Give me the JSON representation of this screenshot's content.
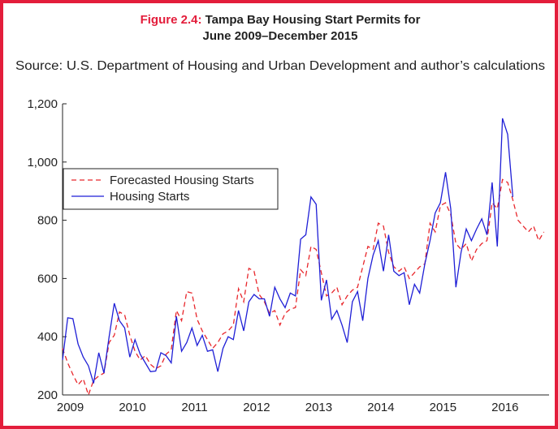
{
  "chart_data": {
    "type": "line",
    "figure_label": "Figure 2.4:",
    "title": [
      "Tampa Bay Housing Start Permits for",
      "June 2009–December 2015"
    ],
    "subtitle": "Source: U.S. Department of Housing and Urban Development and author’s calculations",
    "categories": [
      null,
      "2009",
      null,
      null,
      null,
      null,
      null,
      null,
      null,
      null,
      null,
      null,
      null,
      "2010",
      null,
      null,
      null,
      null,
      null,
      null,
      null,
      null,
      null,
      null,
      null,
      "2011",
      null,
      null,
      null,
      null,
      null,
      null,
      null,
      null,
      null,
      null,
      null,
      "2012",
      null,
      null,
      null,
      null,
      null,
      null,
      null,
      null,
      null,
      null,
      null,
      "2013",
      null,
      null,
      null,
      null,
      null,
      null,
      null,
      null,
      null,
      null,
      null,
      "2014",
      null,
      null,
      null,
      null,
      null,
      null,
      null,
      null,
      null,
      null,
      null,
      "2015",
      null,
      null,
      null,
      null,
      null,
      null,
      null,
      null,
      null,
      null,
      null,
      "2016",
      null,
      null,
      null,
      null,
      null,
      null,
      null,
      null
    ],
    "series": [
      {
        "name": "Forecasted Housing Starts",
        "color": "#e8272c",
        "dashed": true,
        "values": [
          360,
          310,
          270,
          235,
          255,
          200,
          250,
          265,
          275,
          380,
          405,
          485,
          475,
          405,
          350,
          320,
          335,
          305,
          290,
          300,
          340,
          355,
          490,
          455,
          555,
          550,
          460,
          420,
          390,
          360,
          380,
          410,
          420,
          440,
          565,
          520,
          635,
          625,
          545,
          520,
          480,
          490,
          440,
          480,
          495,
          500,
          630,
          610,
          710,
          700,
          620,
          540,
          550,
          570,
          510,
          540,
          560,
          570,
          640,
          710,
          700,
          790,
          780,
          690,
          640,
          625,
          640,
          600,
          620,
          640,
          650,
          790,
          760,
          850,
          860,
          820,
          720,
          700,
          720,
          660,
          700,
          720,
          730,
          860,
          840,
          940,
          930,
          870,
          800,
          780,
          760,
          780,
          730,
          760
        ]
      },
      {
        "name": "Housing Starts",
        "color": "#1f1fd6",
        "dashed": false,
        "values": [
          320,
          465,
          462,
          375,
          330,
          300,
          240,
          345,
          275,
          400,
          515,
          455,
          430,
          330,
          390,
          340,
          310,
          280,
          282,
          345,
          335,
          310,
          470,
          350,
          380,
          430,
          370,
          405,
          350,
          355,
          280,
          360,
          400,
          390,
          490,
          420,
          520,
          545,
          530,
          530,
          470,
          570,
          530,
          500,
          550,
          540,
          735,
          750,
          880,
          855,
          525,
          595,
          460,
          490,
          440,
          380,
          520,
          555,
          455,
          600,
          680,
          730,
          625,
          750,
          625,
          610,
          620,
          510,
          580,
          550,
          650,
          730,
          825,
          860,
          965,
          840,
          570,
          690,
          770,
          730,
          770,
          805,
          750,
          930,
          710,
          1150,
          1095,
          880,
          null,
          null,
          null,
          null,
          null,
          null
        ]
      }
    ],
    "ylim": [
      200,
      1200
    ],
    "yticks": [
      200,
      400,
      600,
      800,
      {
        "value": 1000,
        "label": "1,000"
      },
      {
        "value": 1200,
        "label": "1,200"
      }
    ],
    "legend": "upper left"
  }
}
